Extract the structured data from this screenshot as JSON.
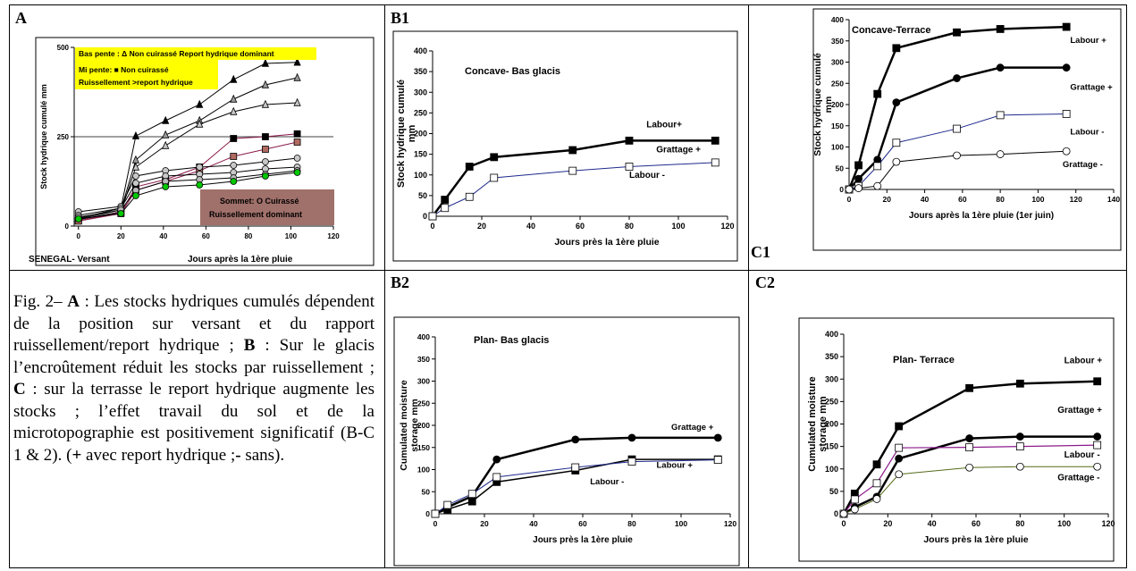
{
  "panels": {
    "A": {
      "label": "A"
    },
    "B1": {
      "label": "B1"
    },
    "B2": {
      "label": "B2"
    },
    "C1": {
      "label": "C1"
    },
    "C2": {
      "label": "C2"
    }
  },
  "caption": {
    "fig": "Fig. 2–",
    "A_label": "A",
    "A_text": ": Les stocks hydriques cumulés dépendent de la position sur versant et du rapport ruissellement/report hydrique ;",
    "B_label": "B",
    "B_text": ": Sur le glacis l’encroûtement réduit les stocks par ruissellement ;",
    "C_label": "C",
    "C_text": ": sur la terrasse le report hydrique augmente les stocks ; l’effet travail du sol et de la microtopographie est positivement significatif (B-C 1 & 2). (",
    "plus": "+",
    "plus_text": " avec report hydrique ;",
    "minus": "-",
    "minus_text": " sans)."
  },
  "chart_data": [
    {
      "id": "A",
      "type": "line",
      "title": "",
      "xlabel": "Jours après la 1ère pluie",
      "ylabel": "Stock hydrique cumulé mm",
      "footer_left": "SENEGAL- Versant",
      "xlim": [
        -2,
        120
      ],
      "ylim": [
        0,
        500
      ],
      "xticks": [
        0,
        20,
        40,
        60,
        80,
        100,
        120
      ],
      "yticks": [
        0,
        250,
        500
      ],
      "grid": "horizontal at 250",
      "annotations": [
        {
          "line1": "Bas pente : Δ  Non cuirassé  Report hydrique dominant",
          "bg": "#ffff00"
        },
        {
          "line1": "Mi pente: ■  Non cuirassé",
          "line2": "Ruissellement >report hydrique",
          "bg": "#ffff00"
        },
        {
          "line1": "Sommet: O  Cuirassé",
          "line2": "Ruissellement dominant",
          "bg": "#a0706a"
        }
      ],
      "series": [
        {
          "marker": "triangle",
          "fill": "#000000",
          "line": "#000000",
          "x": [
            0,
            20,
            27,
            41,
            57,
            73,
            88,
            103
          ],
          "y": [
            22,
            50,
            252,
            295,
            340,
            410,
            455,
            458
          ]
        },
        {
          "marker": "triangle",
          "fill": "#9a9a9a",
          "line": "#000000",
          "x": [
            0,
            20,
            27,
            41,
            57,
            73,
            88,
            103
          ],
          "y": [
            20,
            45,
            185,
            255,
            295,
            355,
            395,
            415
          ]
        },
        {
          "marker": "triangle",
          "fill": "#c8c8c8",
          "line": "#000000",
          "x": [
            0,
            20,
            27,
            41,
            57,
            73,
            88,
            103
          ],
          "y": [
            18,
            40,
            165,
            225,
            285,
            320,
            340,
            345
          ]
        },
        {
          "marker": "square",
          "fill": "#000000",
          "line": "#8b1a4a",
          "x": [
            0,
            20,
            27,
            41,
            57,
            73,
            88,
            103
          ],
          "y": [
            15,
            38,
            110,
            130,
            165,
            245,
            250,
            258
          ]
        },
        {
          "marker": "square",
          "fill": "#b06a60",
          "line": "#8b1a4a",
          "x": [
            0,
            20,
            27,
            41,
            57,
            73,
            88,
            103
          ],
          "y": [
            14,
            35,
            100,
            125,
            155,
            195,
            215,
            235
          ]
        },
        {
          "marker": "circle",
          "fill": "#c8c8c8",
          "line": "#000000",
          "x": [
            0,
            20,
            27,
            41,
            57,
            73,
            88,
            103
          ],
          "y": [
            40,
            55,
            140,
            155,
            165,
            170,
            180,
            190
          ]
        },
        {
          "marker": "circle",
          "fill": "#c8c8c8",
          "line": "#000000",
          "x": [
            0,
            20,
            27,
            41,
            57,
            73,
            88,
            103
          ],
          "y": [
            30,
            50,
            120,
            140,
            145,
            150,
            160,
            165
          ]
        },
        {
          "marker": "circle",
          "fill": "#b8b8b8",
          "line": "#000000",
          "x": [
            0,
            20,
            27,
            41,
            57,
            73,
            88,
            103
          ],
          "y": [
            25,
            45,
            100,
            125,
            130,
            135,
            145,
            155
          ]
        },
        {
          "marker": "circle",
          "fill": "#00c800",
          "line": "#000000",
          "x": [
            0,
            20,
            27,
            41,
            57,
            73,
            88,
            103
          ],
          "y": [
            20,
            35,
            85,
            110,
            115,
            125,
            140,
            150
          ]
        }
      ]
    },
    {
      "id": "B1",
      "type": "line",
      "title": "Concave-  Bas glacis",
      "xlabel": "Jours près la 1ère pluie",
      "ylabel_lines": [
        "Stock hydrique cumulé",
        "mm"
      ],
      "xlim": [
        0,
        120
      ],
      "ylim": [
        0,
        400
      ],
      "xticks": [
        0,
        20,
        40,
        60,
        80,
        100,
        120
      ],
      "yticks": [
        0,
        50,
        100,
        150,
        200,
        250,
        300,
        350,
        400
      ],
      "series": [
        {
          "name": "Labour+",
          "marker": "square",
          "fill": "#000000",
          "line": "#000000",
          "width": 2.5,
          "x": [
            0,
            5,
            15,
            25,
            57,
            80,
            115
          ],
          "y": [
            0,
            40,
            120,
            143,
            160,
            183,
            183
          ]
        },
        {
          "name": "Labour -",
          "marker": "square",
          "fill": "#ffffff",
          "line": "#1f2a8c",
          "width": 1,
          "x": [
            0,
            5,
            15,
            25,
            57,
            80,
            115
          ],
          "y": [
            0,
            20,
            47,
            93,
            110,
            120,
            130
          ]
        }
      ],
      "labels": [
        {
          "text": "Labour+",
          "x": 87,
          "y": 215
        },
        {
          "text": "Grattage +",
          "x": 91,
          "y": 155
        },
        {
          "text": "Labour -",
          "x": 80,
          "y": 93
        }
      ]
    },
    {
      "id": "C1",
      "type": "line",
      "title": "Concave-Terrace",
      "xlabel": "Jours après la 1ère pluie (1er juin)",
      "ylabel_lines": [
        "Stock hydrique cumulé",
        "mm"
      ],
      "xlim": [
        0,
        140
      ],
      "ylim": [
        0,
        400
      ],
      "xticks": [
        0,
        20,
        40,
        60,
        80,
        100,
        120,
        140
      ],
      "yticks": [
        0,
        50,
        100,
        150,
        200,
        250,
        300,
        350,
        400
      ],
      "series": [
        {
          "name": "Labour +",
          "marker": "square",
          "fill": "#000000",
          "line": "#000000",
          "width": 2.5,
          "x": [
            0,
            5,
            15,
            25,
            57,
            80,
            115
          ],
          "y": [
            0,
            57,
            225,
            333,
            370,
            378,
            383
          ]
        },
        {
          "name": "Grattage +",
          "marker": "circle",
          "fill": "#000000",
          "line": "#000000",
          "width": 2.5,
          "x": [
            0,
            5,
            15,
            25,
            57,
            80,
            115
          ],
          "y": [
            0,
            25,
            70,
            205,
            262,
            287,
            287
          ]
        },
        {
          "name": "Labour -",
          "marker": "square",
          "fill": "#ffffff",
          "line": "#1f2a8c",
          "width": 1,
          "x": [
            0,
            5,
            15,
            25,
            57,
            80,
            115
          ],
          "y": [
            0,
            8,
            55,
            110,
            143,
            175,
            178
          ]
        },
        {
          "name": "Grattage -",
          "marker": "circle",
          "fill": "#ffffff",
          "line": "#000000",
          "width": 1,
          "x": [
            0,
            5,
            15,
            25,
            57,
            80,
            115
          ],
          "y": [
            0,
            3,
            8,
            65,
            80,
            83,
            90
          ]
        }
      ],
      "labels": [
        {
          "text": "Labour +",
          "x": 117,
          "y": 345
        },
        {
          "text": "Grattage +",
          "x": 117,
          "y": 235
        },
        {
          "text": "Labour -",
          "x": 117,
          "y": 130
        },
        {
          "text": "Grattage -",
          "x": 113,
          "y": 53
        }
      ]
    },
    {
      "id": "B2",
      "type": "line",
      "title": "Plan- Bas glacis",
      "xlabel": "Jours près la 1ère pluie",
      "ylabel_lines": [
        "Cumulated moisture",
        "storage  mm"
      ],
      "xlim": [
        0,
        120
      ],
      "ylim": [
        0,
        400
      ],
      "xticks": [
        0,
        20,
        40,
        60,
        80,
        100,
        120
      ],
      "yticks": [
        0,
        50,
        100,
        150,
        200,
        250,
        300,
        350,
        400
      ],
      "series": [
        {
          "name": "Grattage +",
          "marker": "circle",
          "fill": "#000000",
          "line": "#000000",
          "width": 2.5,
          "x": [
            0,
            5,
            15,
            25,
            57,
            80,
            115
          ],
          "y": [
            0,
            15,
            40,
            123,
            168,
            172,
            172
          ]
        },
        {
          "name": "Labour +",
          "marker": "square",
          "fill": "#000000",
          "line": "#000000",
          "width": 1.5,
          "x": [
            0,
            5,
            15,
            25,
            57,
            80,
            115
          ],
          "y": [
            0,
            10,
            28,
            72,
            98,
            123,
            123
          ]
        },
        {
          "name": "Labour -",
          "marker": "square",
          "fill": "#ffffff",
          "line": "#1f2a8c",
          "width": 1,
          "x": [
            0,
            5,
            15,
            25,
            57,
            80,
            115
          ],
          "y": [
            0,
            20,
            45,
            83,
            105,
            118,
            122
          ]
        }
      ],
      "labels": [
        {
          "text": "Grattage +",
          "x": 96,
          "y": 190
        },
        {
          "text": "Labour +",
          "x": 90,
          "y": 104
        },
        {
          "text": "Labour -",
          "x": 63,
          "y": 67
        }
      ]
    },
    {
      "id": "C2",
      "type": "line",
      "title": "Plan- Terrace",
      "xlabel": "Jours près la 1ère pluie",
      "ylabel_lines": [
        "Cumulated moisture",
        "storage mm"
      ],
      "xlim": [
        0,
        120
      ],
      "ylim": [
        0,
        400
      ],
      "xticks": [
        0,
        20,
        40,
        60,
        80,
        100,
        120
      ],
      "yticks": [
        0,
        50,
        100,
        150,
        200,
        250,
        300,
        350,
        400
      ],
      "series": [
        {
          "name": "Labour +",
          "marker": "square",
          "fill": "#000000",
          "line": "#000000",
          "width": 2.5,
          "x": [
            0,
            5,
            15,
            25,
            57,
            80,
            115
          ],
          "y": [
            0,
            45,
            110,
            195,
            280,
            290,
            295
          ]
        },
        {
          "name": "Grattage +",
          "marker": "circle",
          "fill": "#000000",
          "line": "#000000",
          "width": 2.5,
          "x": [
            0,
            5,
            15,
            25,
            57,
            80,
            115
          ],
          "y": [
            0,
            15,
            38,
            123,
            168,
            172,
            172
          ]
        },
        {
          "name": "Labour -",
          "marker": "square",
          "fill": "#ffffff",
          "line": "#8b1a8a",
          "width": 1.2,
          "x": [
            0,
            5,
            15,
            25,
            57,
            80,
            115
          ],
          "y": [
            0,
            32,
            68,
            147,
            148,
            150,
            153
          ]
        },
        {
          "name": "Grattage -",
          "marker": "circle",
          "fill": "#ffffff",
          "line": "#556b1a",
          "width": 1,
          "x": [
            0,
            5,
            15,
            25,
            57,
            80,
            115
          ],
          "y": [
            0,
            10,
            33,
            88,
            103,
            105,
            105
          ]
        }
      ],
      "labels": [
        {
          "text": "Labour +",
          "x": 100,
          "y": 335
        },
        {
          "text": "Grattage +",
          "x": 97,
          "y": 225
        },
        {
          "text": "Labour -",
          "x": 100,
          "y": 125
        },
        {
          "text": "Grattage -",
          "x": 97,
          "y": 75
        }
      ]
    }
  ]
}
